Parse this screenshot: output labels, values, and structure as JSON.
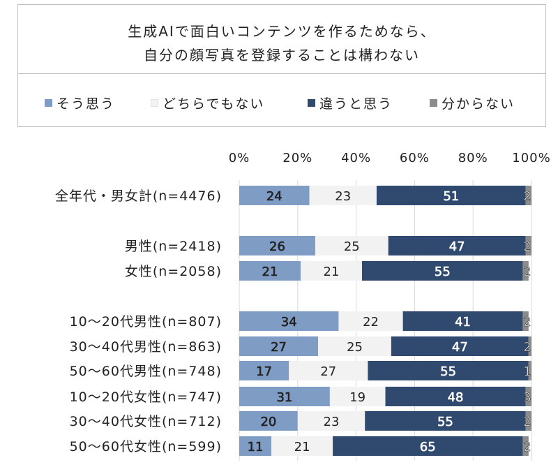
{
  "chart_data": {
    "type": "bar",
    "orientation": "horizontal",
    "stacked": "100%",
    "title": [
      "生成AIで面白いコンテンツを作るためなら、",
      "自分の顔写真を登録することは構わない"
    ],
    "legend_placement": "top",
    "xlim": [
      0,
      100
    ],
    "x_ticks": [
      "0%",
      "20%",
      "40%",
      "60%",
      "80%",
      "100%"
    ],
    "categories": [
      "全年代・男女計(n=4476)",
      "",
      "男性(n=2418)",
      "女性(n=2058)",
      "",
      "10～20代男性(n=807)",
      "30～40代男性(n=863)",
      "50～60代男性(n=748)",
      "10～20代女性(n=747)",
      "30～40代女性(n=712)",
      "50～60代女性(n=599)"
    ],
    "series": [
      {
        "name": "そう思う",
        "color": "#7f9cc4",
        "values": [
          24,
          null,
          26,
          21,
          null,
          34,
          27,
          17,
          31,
          20,
          11
        ]
      },
      {
        "name": "どちらでもない",
        "color": "#f2f2f2",
        "values": [
          23,
          null,
          25,
          21,
          null,
          22,
          25,
          27,
          19,
          23,
          21
        ]
      },
      {
        "name": "違うと思う",
        "color": "#2f4a6e",
        "values": [
          51,
          null,
          47,
          55,
          null,
          41,
          47,
          55,
          48,
          55,
          65
        ]
      },
      {
        "name": "分からない",
        "color": "#8c8c8c",
        "values": [
          2,
          null,
          2,
          2,
          null,
          2,
          2,
          1,
          3,
          2,
          2
        ]
      }
    ],
    "grid": true
  }
}
